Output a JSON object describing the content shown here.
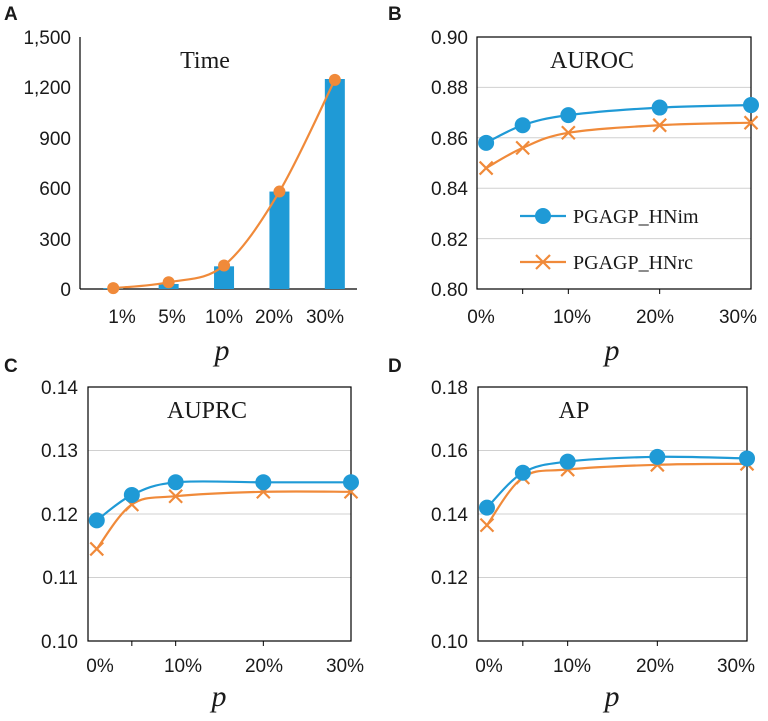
{
  "colors": {
    "blue": "#1f9ad6",
    "orange": "#f08a3a"
  },
  "chart_data": [
    {
      "id": "panel-a",
      "letter": "A",
      "type": "bar",
      "title": "Time",
      "xlabel": "p",
      "ylabel": "",
      "categories": [
        "1%",
        "5%",
        "10%",
        "20%",
        "30%"
      ],
      "values": [
        5,
        30,
        135,
        580,
        1250
      ],
      "line_values": [
        5,
        40,
        140,
        580,
        1245
      ],
      "ylim": [
        0,
        1500
      ],
      "yticks": [
        "0",
        "300",
        "600",
        "900",
        "1,200",
        "1,500"
      ],
      "grid": false
    },
    {
      "id": "panel-b",
      "letter": "B",
      "type": "line",
      "title": "AUROC",
      "xlabel": "p",
      "xlim": [
        0,
        30
      ],
      "xticks": [
        "0%",
        "10%",
        "20%",
        "30%"
      ],
      "ylim": [
        0.8,
        0.9
      ],
      "yticks": [
        "0.80",
        "0.82",
        "0.84",
        "0.86",
        "0.88",
        "0.90"
      ],
      "x": [
        1,
        5,
        10,
        20,
        30
      ],
      "series": [
        {
          "name": "PGAGP_HNim",
          "marker": "circle",
          "values": [
            0.858,
            0.865,
            0.869,
            0.872,
            0.873
          ]
        },
        {
          "name": "PGAGP_HNrc",
          "marker": "x",
          "values": [
            0.848,
            0.856,
            0.862,
            0.865,
            0.866
          ]
        }
      ],
      "legend": "center-right",
      "grid": true
    },
    {
      "id": "panel-c",
      "letter": "C",
      "type": "line",
      "title": "AUPRC",
      "xlabel": "p",
      "xlim": [
        0,
        30
      ],
      "xticks": [
        "0%",
        "10%",
        "20%",
        "30%"
      ],
      "ylim": [
        0.1,
        0.14
      ],
      "yticks": [
        "0.10",
        "0.11",
        "0.12",
        "0.13",
        "0.14"
      ],
      "x": [
        1,
        5,
        10,
        20,
        30
      ],
      "series": [
        {
          "name": "PGAGP_HNim",
          "marker": "circle",
          "values": [
            0.119,
            0.123,
            0.125,
            0.125,
            0.125
          ]
        },
        {
          "name": "PGAGP_HNrc",
          "marker": "x",
          "values": [
            0.1145,
            0.1215,
            0.1228,
            0.1235,
            0.1235
          ]
        }
      ],
      "grid": true
    },
    {
      "id": "panel-d",
      "letter": "D",
      "type": "line",
      "title": "AP",
      "xlabel": "p",
      "xlim": [
        0,
        30
      ],
      "xticks": [
        "0%",
        "10%",
        "20%",
        "30%"
      ],
      "ylim": [
        0.1,
        0.18
      ],
      "yticks": [
        "0.10",
        "0.12",
        "0.14",
        "0.16",
        "0.18"
      ],
      "x": [
        1,
        5,
        10,
        20,
        30
      ],
      "series": [
        {
          "name": "PGAGP_HNim",
          "marker": "circle",
          "values": [
            0.142,
            0.153,
            0.1565,
            0.158,
            0.1575
          ]
        },
        {
          "name": "PGAGP_HNrc",
          "marker": "x",
          "values": [
            0.1365,
            0.1515,
            0.154,
            0.1555,
            0.1558
          ]
        }
      ],
      "grid": true
    }
  ]
}
